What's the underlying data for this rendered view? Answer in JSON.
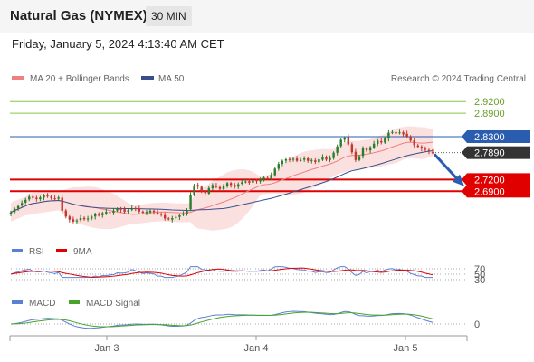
{
  "header": {
    "title": "Natural Gas (NYMEX)",
    "timeframe": "30 MIN"
  },
  "datetime": "Friday, January 5, 2024 4:13:40 AM CET",
  "legend": {
    "ma_bb": "MA 20 + Bollinger Bands",
    "ma50": "MA 50",
    "credit": "Research © 2024 Trading Central"
  },
  "colors": {
    "up": "#2a7d2a",
    "down": "#c0392b",
    "bb_fill": "#fbe0e0",
    "ma20": "#f08080",
    "ma50": "#3a4e8c",
    "resistance": "#8bc34a",
    "pivot": "#2a5db0",
    "support": "#e00000",
    "last": "#333333",
    "rsi": "#5b7fd6",
    "rsi_ma": "#e00000",
    "macd": "#5b7fd6",
    "macd_signal": "#4aa32a",
    "arrow": "#2a5db0"
  },
  "chart_data": [
    {
      "type": "candlestick",
      "title": "Natural Gas (NYMEX)",
      "timeframe": "30 MIN",
      "x_ticks": [
        "Jan 3",
        "Jan 4",
        "Jan 5"
      ],
      "ylim": [
        2.57,
        2.96
      ],
      "last_price": 2.789,
      "levels": [
        {
          "label": "2.9200",
          "value": 2.92,
          "kind": "resistance"
        },
        {
          "label": "2.8900",
          "value": 2.89,
          "kind": "resistance"
        },
        {
          "label": "2.8300",
          "value": 2.83,
          "kind": "pivot"
        },
        {
          "label": "2.7890",
          "value": 2.789,
          "kind": "last"
        },
        {
          "label": "2.7200",
          "value": 2.72,
          "kind": "support"
        },
        {
          "label": "2.6900",
          "value": 2.69,
          "kind": "support"
        }
      ],
      "forecast_arrow": {
        "from": 2.785,
        "to": 2.71
      },
      "overlays": [
        "MA 20 + Bollinger Bands",
        "MA 50"
      ],
      "closes": [
        2.636,
        2.645,
        2.652,
        2.66,
        2.668,
        2.676,
        2.673,
        2.67,
        2.674,
        2.68,
        2.677,
        2.673,
        2.671,
        2.674,
        2.64,
        2.625,
        2.617,
        2.612,
        2.615,
        2.621,
        2.618,
        2.62,
        2.625,
        2.631,
        2.629,
        2.634,
        2.637,
        2.636,
        2.64,
        2.645,
        2.643,
        2.637,
        2.641,
        2.646,
        2.644,
        2.638,
        2.635,
        2.637,
        2.64,
        2.637,
        2.632,
        2.63,
        2.62,
        2.618,
        2.621,
        2.624,
        2.628,
        2.632,
        2.642,
        2.68,
        2.705,
        2.702,
        2.69,
        2.685,
        2.698,
        2.706,
        2.701,
        2.696,
        2.703,
        2.711,
        2.706,
        2.701,
        2.708,
        2.713,
        2.715,
        2.712,
        2.718,
        2.716,
        2.721,
        2.725,
        2.723,
        2.732,
        2.748,
        2.76,
        2.768,
        2.772,
        2.77,
        2.773,
        2.768,
        2.77,
        2.774,
        2.768,
        2.77,
        2.765,
        2.772,
        2.778,
        2.771,
        2.775,
        2.789,
        2.805,
        2.822,
        2.828,
        2.81,
        2.79,
        2.77,
        2.78,
        2.8,
        2.795,
        2.803,
        2.812,
        2.82,
        2.815,
        2.826,
        2.84,
        2.842,
        2.838,
        2.841,
        2.836,
        2.83,
        2.82,
        2.808,
        2.804,
        2.8,
        2.796,
        2.792,
        2.789
      ]
    },
    {
      "type": "line",
      "title": "RSI",
      "series": [
        {
          "name": "RSI"
        },
        {
          "name": "9MA"
        }
      ],
      "levels": [
        70,
        50,
        30
      ],
      "ylim": [
        0,
        100
      ]
    },
    {
      "type": "line",
      "title": "MACD",
      "series": [
        {
          "name": "MACD"
        },
        {
          "name": "MACD Signal"
        }
      ],
      "levels": [
        0
      ]
    }
  ]
}
